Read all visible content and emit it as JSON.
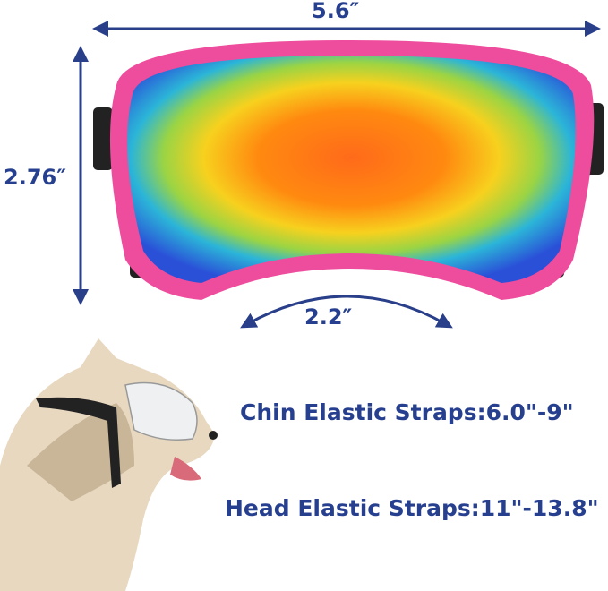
{
  "dimensions": {
    "width": "5.6″",
    "height": "2.76″",
    "nose_bridge": "2.2″"
  },
  "straps": {
    "chin": "Chin Elastic Straps:6.0\"-9\"",
    "head": "Head Elastic Straps:11\"-13.8\""
  },
  "colors": {
    "text": "#263f8e",
    "frame": "#ee4c9c",
    "arrow": "#2a3f8a"
  }
}
